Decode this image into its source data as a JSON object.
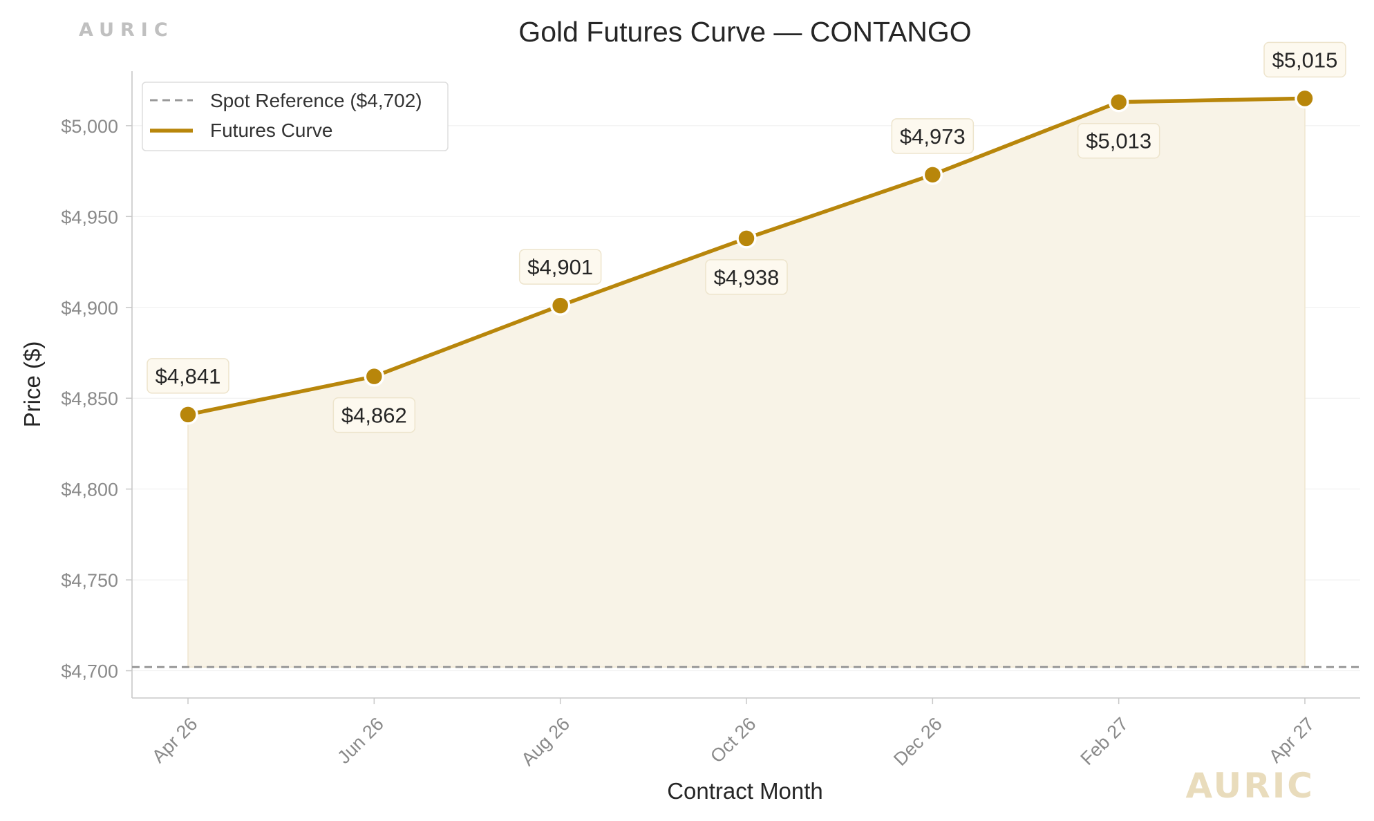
{
  "brand": {
    "top_label": "AURIC",
    "watermark": "AURIC"
  },
  "colors": {
    "curve": "#b8860b",
    "fill": "#f8f3e7",
    "spot": "#999999",
    "axis": "#c8c8c8",
    "grid": "#f1f1f1",
    "label_bg": "#fdf9ef",
    "label_border": "#ede4cc"
  },
  "chart_data": {
    "type": "line",
    "title": "Gold Futures Curve — CONTANGO",
    "xlabel": "Contract Month",
    "ylabel": "Price ($)",
    "ylim": [
      4685,
      5030
    ],
    "yticks": [
      4700,
      4750,
      4800,
      4850,
      4900,
      4950,
      5000
    ],
    "ytick_labels": [
      "$4,700",
      "$4,750",
      "$4,800",
      "$4,850",
      "$4,900",
      "$4,950",
      "$5,000"
    ],
    "categories": [
      "Apr 26",
      "Jun 26",
      "Aug 26",
      "Oct 26",
      "Dec 26",
      "Feb 27",
      "Apr 27"
    ],
    "series": [
      {
        "name": "Futures Curve",
        "values": [
          4841,
          4862,
          4901,
          4938,
          4973,
          5013,
          5015
        ],
        "labels": [
          "$4,841",
          "$4,862",
          "$4,901",
          "$4,938",
          "$4,973",
          "$5,013",
          "$5,015"
        ],
        "label_positions": [
          "above",
          "below",
          "above",
          "below",
          "above",
          "below",
          "above"
        ]
      }
    ],
    "reference_lines": [
      {
        "name": "Spot Reference ($4,702)",
        "value": 4702,
        "style": "dashed"
      }
    ],
    "legend": {
      "position": "top-left",
      "entries": [
        "Spot Reference ($4,702)",
        "Futures Curve"
      ]
    },
    "grid": true
  }
}
